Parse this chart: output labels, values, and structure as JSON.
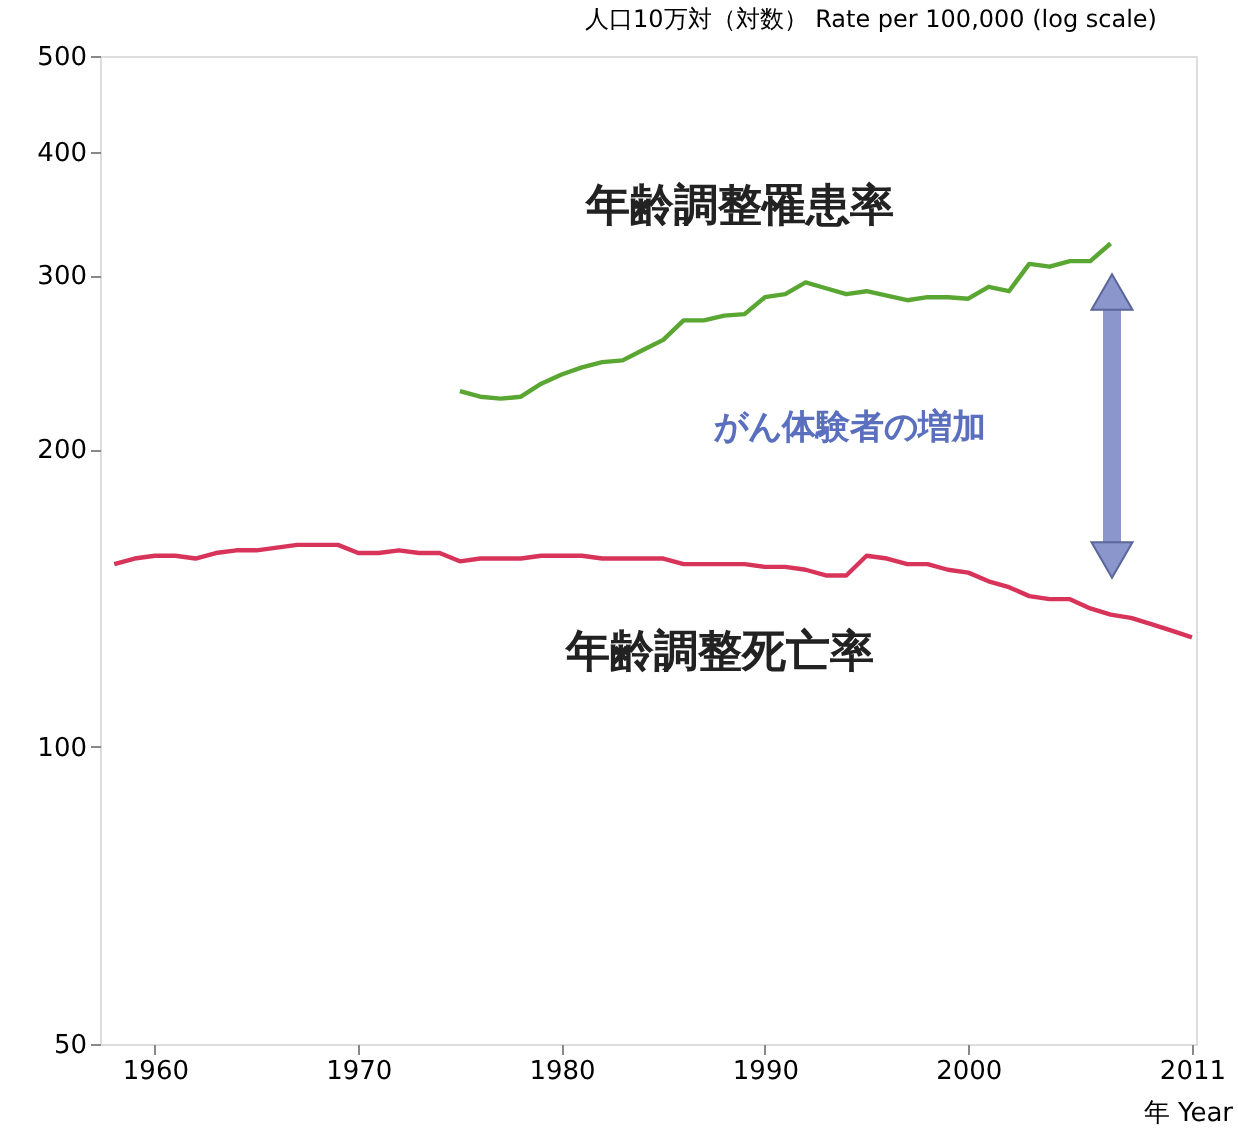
{
  "chart_data": {
    "type": "line",
    "ylabel": "人口10万対（対数） Rate per 100,000 (log scale)",
    "xlabel": "年 Year",
    "xlim": [
      1957.3,
      2011.2
    ],
    "xticks": [
      1960,
      1970,
      1980,
      1990,
      2000,
      2011
    ],
    "ylim": [
      50,
      500
    ],
    "yticks": [
      50,
      100,
      200,
      300,
      400,
      500
    ],
    "log": "y",
    "marker": "none",
    "line_style": "solid",
    "series": [
      {
        "name": "年齢調整罹患率",
        "color": "#5aa632",
        "x": [
          1975,
          1976,
          1977,
          1978,
          1979,
          1980,
          1981,
          1982,
          1983,
          1984,
          1985,
          1986,
          1987,
          1988,
          1989,
          1990,
          1991,
          1992,
          1993,
          1994,
          1995,
          1996,
          1997,
          1998,
          1999,
          2000,
          2001,
          2002,
          2003,
          2004,
          2005,
          2006,
          2007
        ],
        "values": [
          229,
          226,
          225,
          226,
          233,
          238,
          242,
          245,
          246,
          252,
          258,
          270,
          270,
          273,
          274,
          285,
          287,
          295,
          291,
          287,
          289,
          286,
          283,
          285,
          285,
          284,
          292,
          289,
          308,
          306,
          310,
          310,
          323
        ]
      },
      {
        "name": "年齢調整死亡率",
        "color": "#d8345a",
        "x": [
          1958,
          1959,
          1960,
          1961,
          1962,
          1963,
          1964,
          1965,
          1966,
          1967,
          1968,
          1969,
          1970,
          1971,
          1972,
          1973,
          1974,
          1975,
          1976,
          1977,
          1978,
          1979,
          1980,
          1981,
          1982,
          1983,
          1984,
          1985,
          1986,
          1987,
          1988,
          1989,
          1990,
          1991,
          1992,
          1993,
          1994,
          1995,
          1996,
          1997,
          1998,
          1999,
          2000,
          2001,
          2002,
          2003,
          2004,
          2005,
          2006,
          2007,
          2008,
          2009,
          2010,
          2011
        ],
        "values": [
          153,
          155,
          156,
          156,
          155,
          157,
          158,
          158,
          159,
          160,
          160,
          160,
          157,
          157,
          158,
          157,
          157,
          154,
          155,
          155,
          155,
          156,
          156,
          156,
          155,
          155,
          155,
          155,
          153,
          153,
          153,
          153,
          152,
          152,
          151,
          149,
          149,
          156,
          155,
          153,
          153,
          151,
          150,
          147,
          145,
          142,
          141,
          141,
          138,
          136,
          135,
          133,
          131,
          129
        ]
      }
    ],
    "annotations": [
      "がん体験者の増加"
    ]
  }
}
